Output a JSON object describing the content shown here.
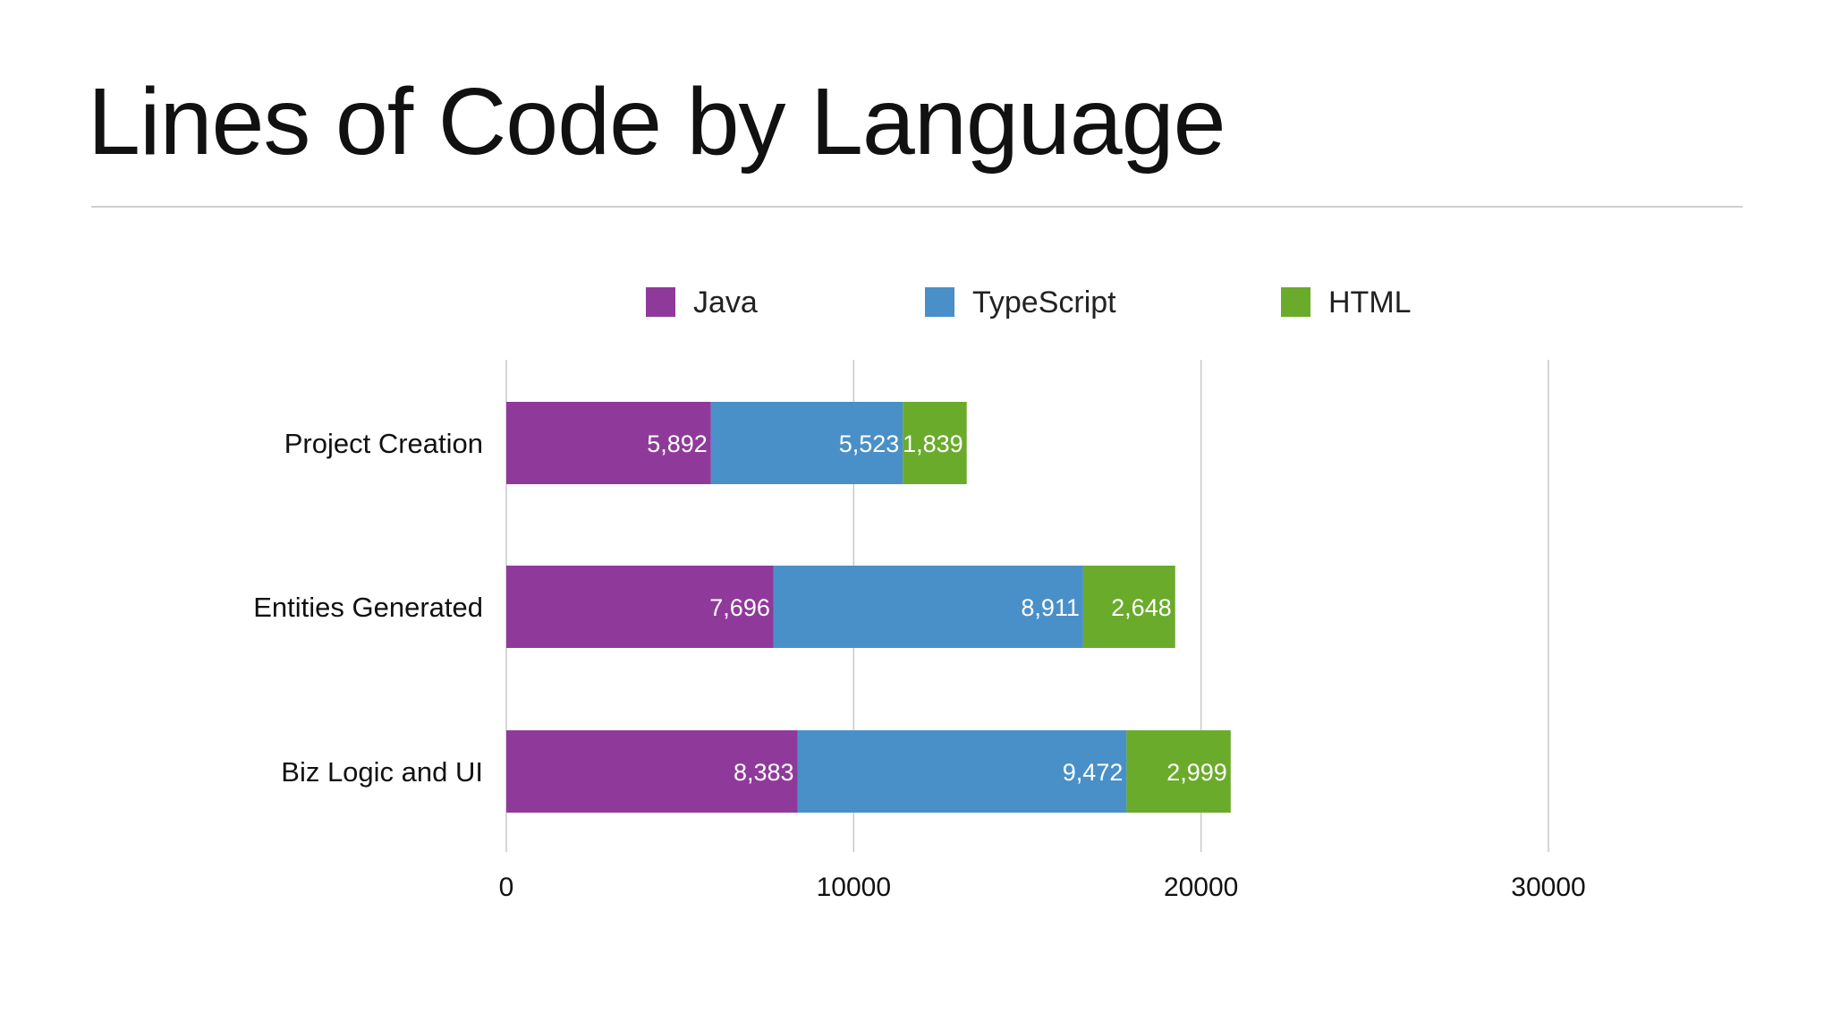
{
  "title": "Lines of Code by Language",
  "colors": {
    "Java": "#8f3a9a",
    "TypeScript": "#4a90c8",
    "HTML": "#6aab2c",
    "grid": "#c9c9c9"
  },
  "chart_data": {
    "type": "bar",
    "orientation": "horizontal",
    "stacked": true,
    "categories": [
      "Project Creation",
      "Entities Generated",
      "Biz Logic and UI"
    ],
    "series": [
      {
        "name": "Java",
        "values": [
          5892,
          7696,
          8383
        ],
        "labels": [
          "5,892",
          "7,696",
          "8,383"
        ]
      },
      {
        "name": "TypeScript",
        "values": [
          5523,
          8911,
          9472
        ],
        "labels": [
          "5,523",
          "8,911",
          "9,472"
        ]
      },
      {
        "name": "HTML",
        "values": [
          1839,
          2648,
          2999
        ],
        "labels": [
          "1,839",
          "2,648",
          "2,999"
        ]
      }
    ],
    "xlim": [
      0,
      30000
    ],
    "xticks": [
      0,
      10000,
      20000,
      30000
    ],
    "xtick_labels": [
      "0",
      "10000",
      "20000",
      "30000"
    ],
    "grid": true,
    "legend": "top"
  }
}
